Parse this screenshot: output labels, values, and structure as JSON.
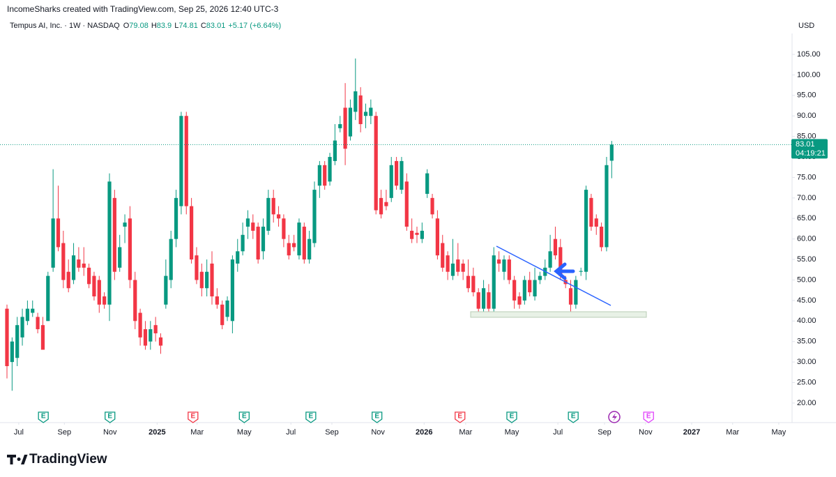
{
  "header": "IncomeSharks created with TradingView.com, Sep 25, 2026 12:40 UTC-3",
  "brand": "TradingView",
  "chart_data": {
    "type": "candlestick",
    "currency": "USD",
    "legend_symbol": "Tempus AI, Inc. · 1W · NASDAQ",
    "legend_keys": [
      "O",
      "H",
      "L",
      "C"
    ],
    "change": "+5.17 (+6.64%)",
    "countdown": "04:19:21",
    "up_color": "#089981",
    "down_color": "#f23645",
    "xlim": [
      -1.36,
      153.06
    ],
    "ylim": [
      15.4,
      110.1
    ],
    "xticks": [
      {
        "value": 2.3,
        "label": "Jul"
      },
      {
        "value": 11.2,
        "label": "Sep"
      },
      {
        "value": 20.1,
        "label": "Nov"
      },
      {
        "value": 29.3,
        "label": "2025"
      },
      {
        "value": 37.1,
        "label": "Mar"
      },
      {
        "value": 46.3,
        "label": "May"
      },
      {
        "value": 55.4,
        "label": "Jul"
      },
      {
        "value": 63.4,
        "label": "Sep"
      },
      {
        "value": 72.4,
        "label": "Nov"
      },
      {
        "value": 81.4,
        "label": "2026"
      },
      {
        "value": 89.5,
        "label": "Mar"
      },
      {
        "value": 98.5,
        "label": "May"
      },
      {
        "value": 107.5,
        "label": "Jul"
      },
      {
        "value": 116.6,
        "label": "Sep"
      },
      {
        "value": 124.6,
        "label": "Nov"
      },
      {
        "value": 133.6,
        "label": "2027"
      },
      {
        "value": 141.6,
        "label": "Mar"
      },
      {
        "value": 150.6,
        "label": "May"
      }
    ],
    "yticks": [
      {
        "value": 20,
        "label": "20.00"
      },
      {
        "value": 25,
        "label": "25.00"
      },
      {
        "value": 30,
        "label": "30.00"
      },
      {
        "value": 35,
        "label": "35.00"
      },
      {
        "value": 40,
        "label": "40.00"
      },
      {
        "value": 45,
        "label": "45.00"
      },
      {
        "value": 50,
        "label": "50.00"
      },
      {
        "value": 55,
        "label": "55.00"
      },
      {
        "value": 60,
        "label": "60.00"
      },
      {
        "value": 65,
        "label": "65.00"
      },
      {
        "value": 70,
        "label": "70.00"
      },
      {
        "value": 75,
        "label": "75.00"
      },
      {
        "value": 80,
        "label": "80.00"
      },
      {
        "value": 85,
        "label": "85.00"
      },
      {
        "value": 90,
        "label": "90.00"
      },
      {
        "value": 95,
        "label": "95.00"
      },
      {
        "value": 100,
        "label": "100.00"
      },
      {
        "value": 105,
        "label": "105.00"
      }
    ],
    "events": [
      {
        "x": 7.1,
        "label": "E",
        "color": "#089981"
      },
      {
        "x": 20.1,
        "label": "E",
        "color": "#089981"
      },
      {
        "x": 36.3,
        "label": "E",
        "color": "#f23645"
      },
      {
        "x": 46.3,
        "label": "E",
        "color": "#089981"
      },
      {
        "x": 59.3,
        "label": "E",
        "color": "#089981"
      },
      {
        "x": 72.2,
        "label": "E",
        "color": "#089981"
      },
      {
        "x": 88.4,
        "label": "E",
        "color": "#f23645"
      },
      {
        "x": 98.5,
        "label": "E",
        "color": "#089981"
      },
      {
        "x": 110.5,
        "label": "E",
        "color": "#089981"
      },
      {
        "x": 125.2,
        "label": "E",
        "color": "#e040fb"
      }
    ],
    "series": [
      {
        "name": "Tempus AI, Inc.",
        "ohlc": [
          [
            43,
            44,
            26,
            29
          ],
          [
            30,
            36,
            23,
            35
          ],
          [
            31,
            41,
            29,
            39
          ],
          [
            36,
            43,
            34,
            41
          ],
          [
            40,
            45,
            39,
            43
          ],
          [
            42,
            45,
            41,
            43
          ],
          [
            41,
            42,
            37,
            38
          ],
          [
            39,
            41,
            33,
            33
          ],
          [
            40,
            52,
            40,
            51
          ],
          [
            53,
            77,
            52,
            65
          ],
          [
            65,
            73,
            57,
            58
          ],
          [
            59,
            62,
            48,
            50
          ],
          [
            52,
            55,
            47,
            48
          ],
          [
            50,
            59,
            49,
            56
          ],
          [
            55,
            58,
            52,
            53
          ],
          [
            54,
            58,
            51,
            53
          ],
          [
            53,
            54,
            48,
            49
          ],
          [
            51,
            52,
            45,
            46
          ],
          [
            50,
            51,
            42,
            44
          ],
          [
            46,
            47,
            43,
            44
          ],
          [
            44,
            76,
            40,
            74
          ],
          [
            70,
            72,
            50,
            52
          ],
          [
            53,
            61,
            52,
            58
          ],
          [
            63,
            66,
            59,
            64
          ],
          [
            65,
            68,
            48,
            50
          ],
          [
            50,
            52,
            38,
            40
          ],
          [
            42,
            43,
            34,
            36
          ],
          [
            38,
            40,
            33,
            34
          ],
          [
            35,
            40,
            33,
            38
          ],
          [
            39,
            41,
            35,
            37
          ],
          [
            36,
            37,
            32,
            34
          ],
          [
            44,
            55,
            43,
            51
          ],
          [
            50,
            62,
            48,
            60
          ],
          [
            60,
            72,
            58,
            70
          ],
          [
            68,
            91,
            66,
            90
          ],
          [
            90,
            91,
            66,
            68
          ],
          [
            68,
            70,
            54,
            55
          ],
          [
            56,
            58,
            49,
            50
          ],
          [
            52,
            54,
            46,
            48
          ],
          [
            48,
            55,
            46,
            52
          ],
          [
            54,
            57,
            44,
            46
          ],
          [
            46,
            48,
            43,
            44
          ],
          [
            44,
            45,
            38,
            39
          ],
          [
            41,
            46,
            40,
            45
          ],
          [
            40,
            56,
            37,
            55
          ],
          [
            54,
            60,
            52,
            57
          ],
          [
            57,
            64,
            56,
            61
          ],
          [
            63,
            67,
            60,
            65
          ],
          [
            64,
            66,
            60,
            62
          ],
          [
            63,
            64,
            54,
            55
          ],
          [
            57,
            65,
            55,
            63
          ],
          [
            62,
            72,
            61,
            70
          ],
          [
            70,
            72,
            64,
            66
          ],
          [
            66,
            68,
            63,
            65
          ],
          [
            65,
            66,
            58,
            60
          ],
          [
            59,
            61,
            55,
            56
          ],
          [
            59,
            61,
            57,
            58
          ],
          [
            56,
            65,
            55,
            64
          ],
          [
            63,
            64,
            54,
            55
          ],
          [
            55,
            62,
            54,
            60
          ],
          [
            59,
            74,
            58,
            72
          ],
          [
            73,
            79,
            70,
            78
          ],
          [
            78,
            79,
            72,
            73
          ],
          [
            74,
            81,
            73,
            80
          ],
          [
            79,
            88,
            78,
            84
          ],
          [
            87,
            90,
            86,
            88
          ],
          [
            92,
            98,
            78,
            82
          ],
          [
            85,
            94,
            84,
            92
          ],
          [
            91,
            104,
            89,
            96
          ],
          [
            95,
            97,
            86,
            88
          ],
          [
            90,
            93,
            87,
            91
          ],
          [
            90,
            94,
            88,
            92
          ],
          [
            90,
            91,
            66,
            67
          ],
          [
            70,
            72,
            65,
            66
          ],
          [
            69,
            72,
            67,
            68
          ],
          [
            70,
            80,
            69,
            78
          ],
          [
            79,
            80,
            72,
            73
          ],
          [
            72,
            80,
            71,
            79
          ],
          [
            74,
            76,
            62,
            63
          ],
          [
            62,
            65,
            59,
            60
          ],
          [
            61.5,
            63,
            59,
            61
          ],
          [
            60,
            64,
            59,
            62
          ],
          [
            71,
            77,
            70,
            76
          ],
          [
            70,
            71,
            65,
            66
          ],
          [
            65,
            67,
            55,
            56
          ],
          [
            59,
            61,
            52,
            53
          ],
          [
            56,
            57,
            50,
            52
          ],
          [
            51,
            60,
            50,
            54
          ],
          [
            55,
            59,
            51,
            52
          ],
          [
            54,
            55,
            50,
            52
          ],
          [
            51,
            55,
            47,
            48
          ],
          [
            51,
            53,
            46,
            47
          ],
          [
            47,
            48,
            42,
            43
          ],
          [
            43,
            50,
            42,
            48
          ],
          [
            47,
            49,
            42,
            43
          ],
          [
            43,
            58,
            42,
            56
          ],
          [
            55,
            57,
            52,
            54
          ],
          [
            52,
            56,
            50,
            55
          ],
          [
            55,
            56,
            49,
            50
          ],
          [
            50,
            51,
            43,
            45
          ],
          [
            46,
            47,
            43,
            44
          ],
          [
            45,
            51,
            44,
            50
          ],
          [
            50,
            52,
            46,
            47
          ],
          [
            46,
            53,
            45,
            50
          ],
          [
            50,
            52,
            49,
            51
          ],
          [
            51,
            55,
            50,
            53
          ],
          [
            53,
            61,
            52,
            57
          ],
          [
            60,
            63,
            55,
            56
          ],
          [
            58,
            60,
            50,
            51
          ],
          [
            50,
            51,
            48,
            49
          ],
          [
            48,
            50,
            41,
            44
          ],
          [
            44,
            51,
            43,
            50
          ],
          [
            52,
            53,
            51,
            52.2
          ],
          [
            52,
            73,
            50,
            72
          ],
          [
            70,
            71,
            62,
            63
          ],
          [
            65,
            66,
            61,
            63
          ],
          [
            63,
            64,
            57,
            58
          ],
          [
            58,
            80,
            57,
            78
          ],
          [
            79.08,
            83.9,
            74.81,
            83.01
          ]
        ]
      }
    ]
  }
}
